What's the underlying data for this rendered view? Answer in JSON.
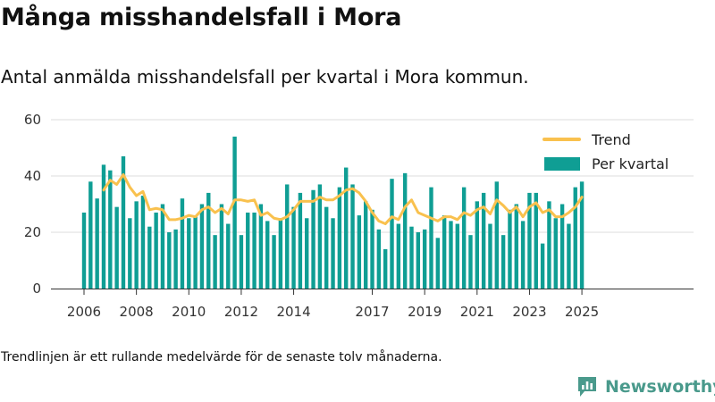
{
  "title": "Många misshandelsfall i Mora",
  "subtitle": "Antal anmälda misshandelsfall per kvartal i Mora kommun.",
  "footnote": "Trendlinjen är ett rullande medelvärde för de senaste tolv månaderna.",
  "brand": {
    "name": "Newsworthy",
    "icon": "newsworthy-logo-icon",
    "color": "#4a9a8c"
  },
  "chart_data": {
    "type": "bar",
    "title": "Många misshandelsfall i Mora",
    "subtitle": "Antal anmälda misshandelsfall per kvartal i Mora kommun.",
    "xlabel": "",
    "ylabel": "",
    "ylim": [
      0,
      60
    ],
    "yticks": [
      "0",
      "20",
      "40",
      "60"
    ],
    "xticks": [
      {
        "label": "2006",
        "at": "2006Q1"
      },
      {
        "label": "2008",
        "at": "2008Q1"
      },
      {
        "label": "2010",
        "at": "2010Q1"
      },
      {
        "label": "2012",
        "at": "2012Q1"
      },
      {
        "label": "2014",
        "at": "2014Q1"
      },
      {
        "label": "2017",
        "at": "2017Q1"
      },
      {
        "label": "2019",
        "at": "2019Q1"
      },
      {
        "label": "2021",
        "at": "2021Q1"
      },
      {
        "label": "2023",
        "at": "2023Q1"
      },
      {
        "label": "2025",
        "at": "2025Q1"
      }
    ],
    "grid": true,
    "legend_position": "top-right",
    "categories": [
      "2006Q1",
      "2006Q2",
      "2006Q3",
      "2006Q4",
      "2007Q1",
      "2007Q2",
      "2007Q3",
      "2007Q4",
      "2008Q1",
      "2008Q2",
      "2008Q3",
      "2008Q4",
      "2009Q1",
      "2009Q2",
      "2009Q3",
      "2009Q4",
      "2010Q1",
      "2010Q2",
      "2010Q3",
      "2010Q4",
      "2011Q1",
      "2011Q2",
      "2011Q3",
      "2011Q4",
      "2012Q1",
      "2012Q2",
      "2012Q3",
      "2012Q4",
      "2013Q1",
      "2013Q2",
      "2013Q3",
      "2013Q4",
      "2014Q1",
      "2014Q2",
      "2014Q3",
      "2014Q4",
      "2015Q1",
      "2015Q2",
      "2015Q3",
      "2015Q4",
      "2016Q1",
      "2016Q2",
      "2016Q3",
      "2016Q4",
      "2017Q1",
      "2017Q2",
      "2017Q3",
      "2017Q4",
      "2018Q1",
      "2018Q2",
      "2018Q3",
      "2018Q4",
      "2019Q1",
      "2019Q2",
      "2019Q3",
      "2019Q4",
      "2020Q1",
      "2020Q2",
      "2020Q3",
      "2020Q4",
      "2021Q1",
      "2021Q2",
      "2021Q3",
      "2021Q4",
      "2022Q1",
      "2022Q2",
      "2022Q3",
      "2022Q4",
      "2023Q1",
      "2023Q2",
      "2023Q3",
      "2023Q4",
      "2024Q1",
      "2024Q2",
      "2024Q3",
      "2024Q4",
      "2025Q1"
    ],
    "series": [
      {
        "name": "Per kvartal",
        "kind": "bar",
        "color": "#0f9e94",
        "values": [
          27,
          38,
          32,
          44,
          42,
          29,
          47,
          25,
          31,
          33,
          22,
          27,
          30,
          20,
          21,
          32,
          25,
          26,
          30,
          34,
          19,
          30,
          23,
          54,
          19,
          27,
          27,
          30,
          24,
          19,
          25,
          37,
          29,
          34,
          25,
          35,
          37,
          29,
          25,
          36,
          43,
          37,
          26,
          31,
          28,
          21,
          14,
          39,
          23,
          41,
          22,
          20,
          21,
          36,
          18,
          26,
          24,
          23,
          36,
          19,
          31,
          34,
          23,
          38,
          19,
          28,
          30,
          24,
          34,
          34,
          16,
          31,
          25,
          30,
          23,
          36,
          38
        ]
      },
      {
        "name": "Trend",
        "kind": "line",
        "color": "#f9c14e",
        "values": [
          null,
          null,
          null,
          35,
          38.5,
          37,
          40.5,
          36,
          33,
          34.5,
          28,
          28.5,
          28,
          24.5,
          24.5,
          25,
          26,
          25.5,
          28,
          29,
          27,
          28.5,
          26.5,
          31.5,
          31.5,
          31,
          31.5,
          26,
          27,
          25,
          24.5,
          25.5,
          28,
          31,
          31,
          31,
          32.5,
          31.5,
          31.5,
          33,
          35,
          35.5,
          34,
          31,
          27,
          24,
          23,
          25.5,
          24.5,
          29,
          31.5,
          27,
          26,
          25,
          24,
          25.5,
          25.5,
          24.5,
          27,
          26,
          28,
          29,
          26.5,
          31.5,
          29.5,
          27,
          29,
          25.5,
          29,
          30.5,
          27,
          28,
          25.5,
          25.5,
          27,
          29,
          32.5
        ]
      }
    ]
  }
}
